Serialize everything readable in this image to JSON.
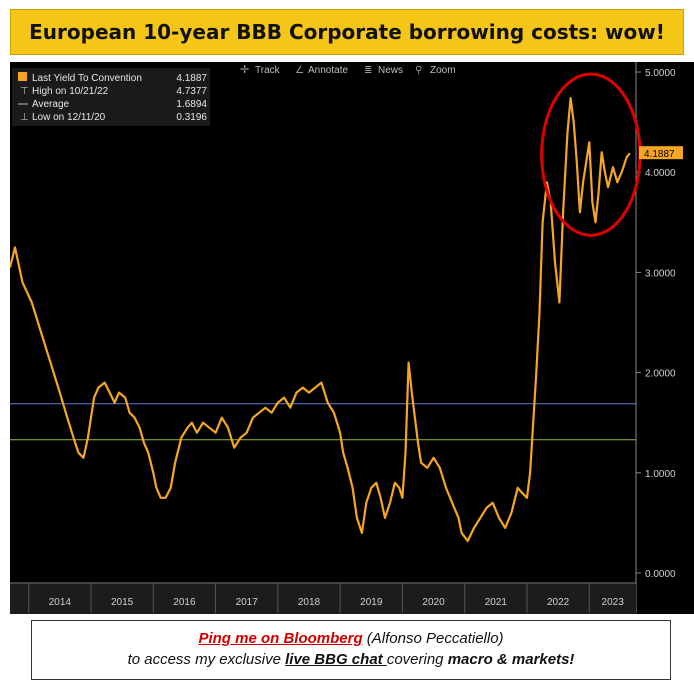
{
  "title": "European 10-year BBB Corporate borrowing costs: wow!",
  "toolbar": {
    "track": "Track",
    "annotate": "Annotate",
    "news": "News",
    "zoom": "Zoom"
  },
  "legend": [
    {
      "label": "Last Yield To Convention",
      "value": "4.1887"
    },
    {
      "label": "High on 10/21/22",
      "value": "4.7377"
    },
    {
      "label": "Average",
      "value": "1.6894"
    },
    {
      "label": "Low on 12/11/20",
      "value": "0.3196"
    }
  ],
  "last_value_tag": "4.1887",
  "footer": {
    "ping": "Ping me on Bloomberg",
    "author": " (Alfonso Peccatiello)",
    "line2_a": "to access my exclusive ",
    "line2_link": "live BBG chat ",
    "line2_b": "covering ",
    "line2_c": "macro & markets!"
  },
  "colors": {
    "series": "#f5a623",
    "average_line": "#5b7fd6",
    "green_line": "#8fbf3f",
    "highlight_circle": "#e00000",
    "title_bg": "#f5c518"
  },
  "chart_data": {
    "type": "line",
    "title": "",
    "xlabel": "",
    "ylabel": "",
    "x_ticks": [
      "2014",
      "2015",
      "2016",
      "2017",
      "2018",
      "2019",
      "2020",
      "2021",
      "2022",
      "2023"
    ],
    "y_ticks": [
      "0.0000",
      "1.0000",
      "2.0000",
      "3.0000",
      "4.0000",
      "5.0000"
    ],
    "ylim": [
      -0.1,
      5.1
    ],
    "xlim": [
      2013.7,
      2023.75
    ],
    "grid": false,
    "legend_position": "top-left",
    "reference_lines": [
      {
        "name": "Average",
        "y": 1.6894
      },
      {
        "name": "",
        "y": 1.33
      }
    ],
    "series": [
      {
        "name": "Last Yield To Convention",
        "x": [
          2013.7,
          2013.78,
          2013.9,
          2014.05,
          2014.2,
          2014.35,
          2014.5,
          2014.62,
          2014.72,
          2014.8,
          2014.88,
          2014.95,
          2015.05,
          2015.12,
          2015.22,
          2015.3,
          2015.38,
          2015.45,
          2015.55,
          2015.62,
          2015.7,
          2015.78,
          2015.85,
          2015.92,
          2016.0,
          2016.05,
          2016.12,
          2016.2,
          2016.28,
          2016.35,
          2016.45,
          2016.55,
          2016.62,
          2016.7,
          2016.8,
          2016.9,
          2017.0,
          2017.1,
          2017.2,
          2017.3,
          2017.4,
          2017.5,
          2017.6,
          2017.7,
          2017.8,
          2017.9,
          2018.0,
          2018.1,
          2018.2,
          2018.3,
          2018.4,
          2018.5,
          2018.6,
          2018.7,
          2018.8,
          2018.9,
          2019.0,
          2019.05,
          2019.12,
          2019.2,
          2019.27,
          2019.35,
          2019.42,
          2019.5,
          2019.58,
          2019.65,
          2019.72,
          2019.8,
          2019.88,
          2019.95,
          2020.0,
          2020.05,
          2020.1,
          2020.15,
          2020.2,
          2020.25,
          2020.3,
          2020.4,
          2020.5,
          2020.6,
          2020.7,
          2020.8,
          2020.9,
          2020.95,
          2021.05,
          2021.15,
          2021.25,
          2021.35,
          2021.45,
          2021.55,
          2021.65,
          2021.75,
          2021.85,
          2021.92,
          2022.0,
          2022.05,
          2022.1,
          2022.15,
          2022.2,
          2022.25,
          2022.32,
          2022.38,
          2022.45,
          2022.52,
          2022.58,
          2022.65,
          2022.7,
          2022.75,
          2022.8,
          2022.85,
          2022.9,
          2022.95,
          2023.0,
          2023.05,
          2023.1,
          2023.15,
          2023.2,
          2023.25,
          2023.3,
          2023.38,
          2023.45,
          2023.52,
          2023.6,
          2023.65
        ],
        "values": [
          3.05,
          3.25,
          2.9,
          2.7,
          2.4,
          2.1,
          1.8,
          1.55,
          1.35,
          1.2,
          1.15,
          1.35,
          1.75,
          1.85,
          1.9,
          1.8,
          1.7,
          1.8,
          1.75,
          1.6,
          1.55,
          1.45,
          1.3,
          1.2,
          1.0,
          0.85,
          0.75,
          0.75,
          0.85,
          1.1,
          1.35,
          1.45,
          1.5,
          1.4,
          1.5,
          1.45,
          1.4,
          1.55,
          1.45,
          1.25,
          1.35,
          1.4,
          1.55,
          1.6,
          1.65,
          1.6,
          1.7,
          1.75,
          1.65,
          1.8,
          1.85,
          1.8,
          1.85,
          1.9,
          1.7,
          1.6,
          1.4,
          1.2,
          1.05,
          0.85,
          0.55,
          0.4,
          0.7,
          0.85,
          0.9,
          0.75,
          0.55,
          0.7,
          0.9,
          0.85,
          0.75,
          1.2,
          2.1,
          1.8,
          1.55,
          1.3,
          1.1,
          1.05,
          1.15,
          1.05,
          0.85,
          0.7,
          0.55,
          0.4,
          0.32,
          0.45,
          0.55,
          0.65,
          0.7,
          0.55,
          0.45,
          0.6,
          0.85,
          0.8,
          0.75,
          1.0,
          1.5,
          2.0,
          2.6,
          3.5,
          3.9,
          3.7,
          3.1,
          2.7,
          3.6,
          4.4,
          4.74,
          4.5,
          4.1,
          3.6,
          3.9,
          4.1,
          4.3,
          3.7,
          3.5,
          3.8,
          4.2,
          4.0,
          3.85,
          4.05,
          3.9,
          4.0,
          4.15,
          4.19
        ]
      }
    ]
  }
}
